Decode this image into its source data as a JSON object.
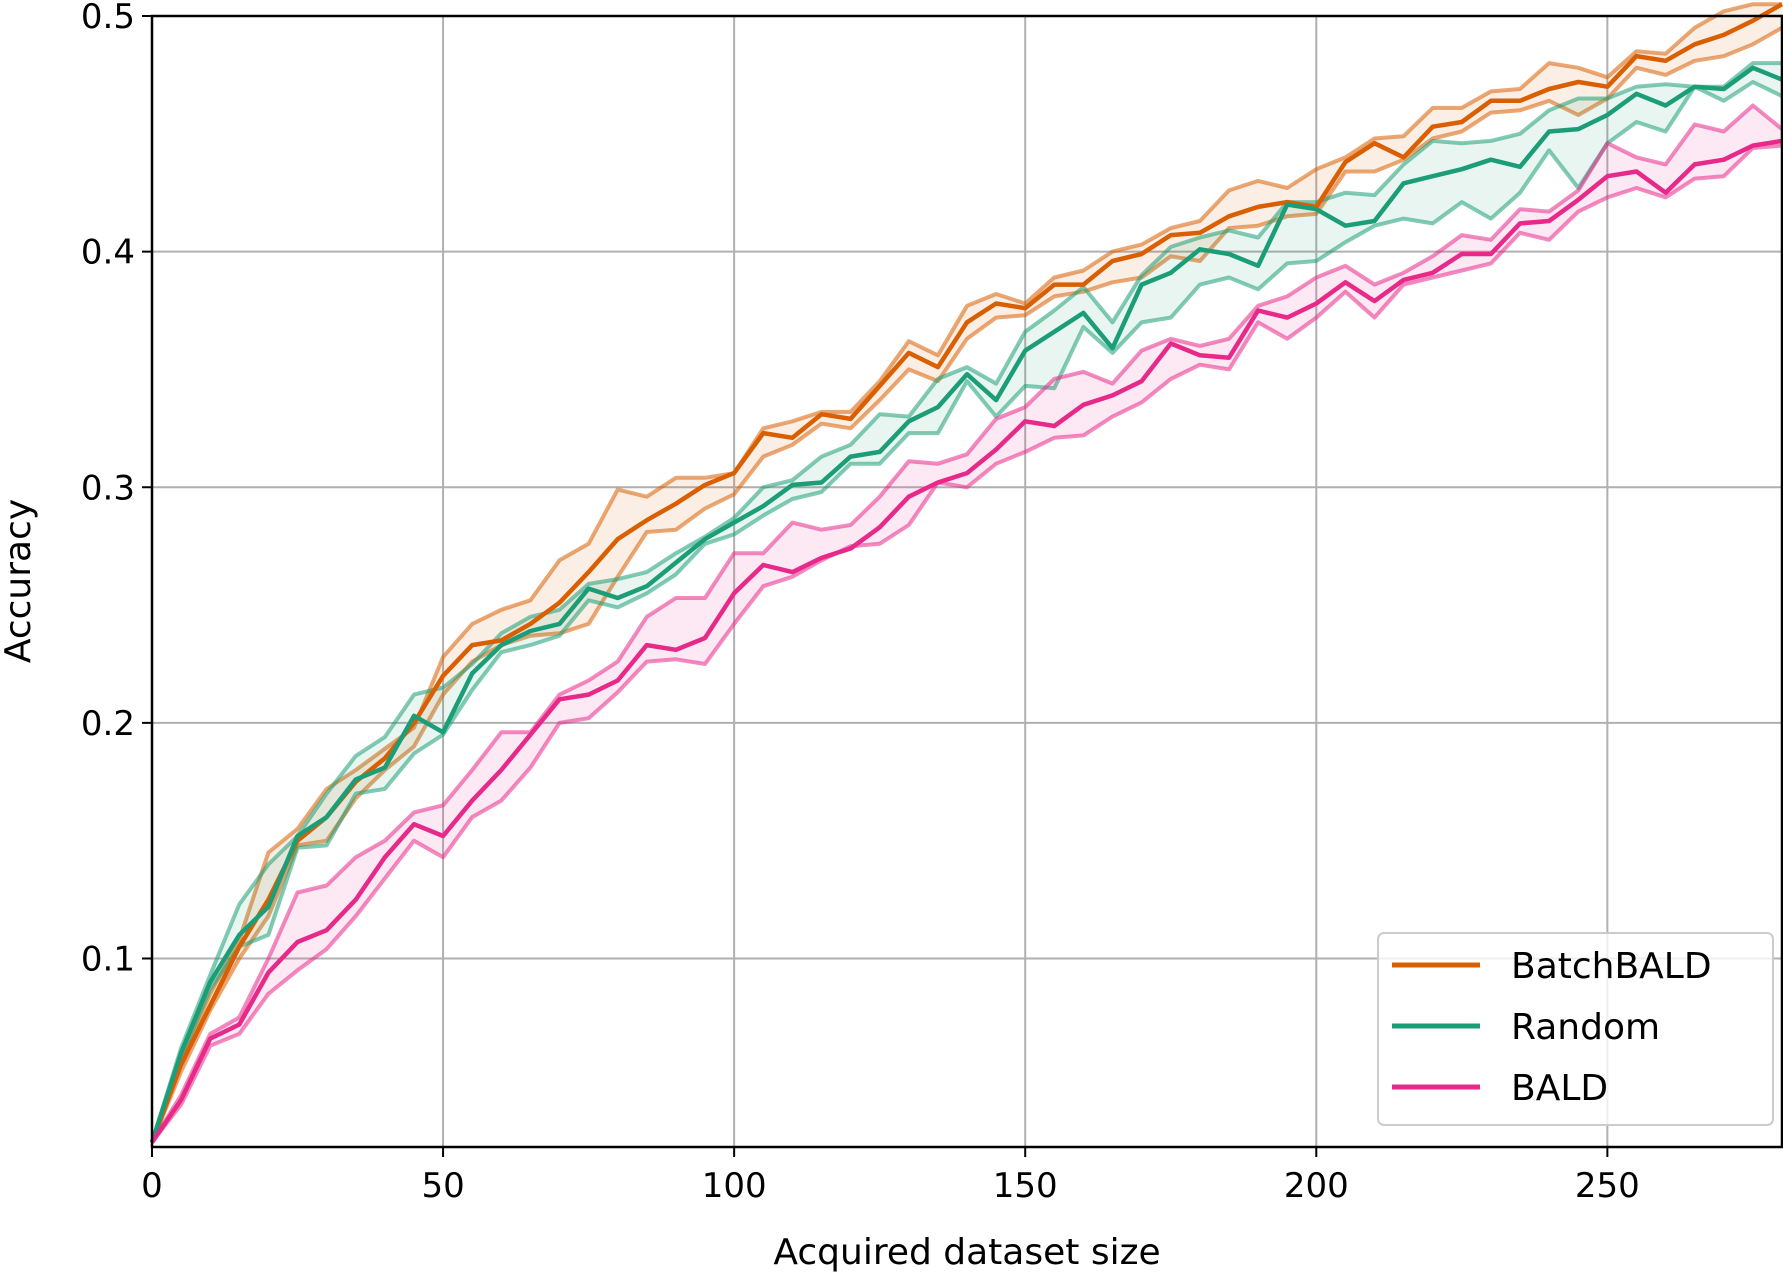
{
  "chart_data": {
    "type": "line",
    "xlabel": "Acquired dataset size",
    "ylabel": "Accuracy",
    "xlim": [
      0,
      280
    ],
    "ylim": [
      0.02,
      0.5
    ],
    "xticks": [
      0,
      50,
      100,
      150,
      200,
      250
    ],
    "xtick_labels": [
      "0",
      "50",
      "100",
      "150",
      "200",
      "250"
    ],
    "yticks": [
      0.1,
      0.2,
      0.3,
      0.4,
      0.5
    ],
    "ytick_labels": [
      "0.1",
      "0.2",
      "0.3",
      "0.4",
      "0.5"
    ],
    "grid": true,
    "legend_position": "bottom-right",
    "x": [
      0,
      5,
      10,
      15,
      20,
      25,
      30,
      35,
      40,
      45,
      50,
      55,
      60,
      65,
      70,
      75,
      80,
      85,
      90,
      95,
      100,
      105,
      110,
      115,
      120,
      125,
      130,
      135,
      140,
      145,
      150,
      155,
      160,
      165,
      170,
      175,
      180,
      185,
      190,
      195,
      200,
      205,
      210,
      215,
      220,
      225,
      230,
      235,
      240,
      245,
      250,
      255,
      260,
      265,
      270,
      275,
      280
    ],
    "series": [
      {
        "name": "BatchBALD",
        "color": "#d95f02",
        "band_upper": [
          0.022,
          0.057,
          0.085,
          0.108,
          0.145,
          0.155,
          0.172,
          0.18,
          0.189,
          0.198,
          0.228,
          0.242,
          0.248,
          0.252,
          0.269,
          0.276,
          0.299,
          0.296,
          0.304,
          0.304,
          0.306,
          0.325,
          0.328,
          0.332,
          0.332,
          0.345,
          0.362,
          0.356,
          0.377,
          0.382,
          0.378,
          0.389,
          0.392,
          0.4,
          0.403,
          0.41,
          0.413,
          0.426,
          0.43,
          0.427,
          0.435,
          0.44,
          0.448,
          0.449,
          0.461,
          0.461,
          0.468,
          0.469,
          0.48,
          0.478,
          0.474,
          0.485,
          0.484,
          0.495,
          0.502,
          0.505,
          0.505
        ],
        "values": [
          0.022,
          0.055,
          0.08,
          0.105,
          0.125,
          0.15,
          0.16,
          0.175,
          0.185,
          0.2,
          0.22,
          0.233,
          0.235,
          0.242,
          0.251,
          0.264,
          0.278,
          0.286,
          0.293,
          0.301,
          0.306,
          0.323,
          0.321,
          0.331,
          0.329,
          0.343,
          0.357,
          0.351,
          0.37,
          0.378,
          0.376,
          0.386,
          0.386,
          0.396,
          0.399,
          0.407,
          0.408,
          0.415,
          0.419,
          0.421,
          0.419,
          0.438,
          0.446,
          0.44,
          0.453,
          0.455,
          0.464,
          0.464,
          0.469,
          0.472,
          0.47,
          0.483,
          0.481,
          0.488,
          0.492,
          0.498,
          0.505
        ],
        "band_lower": [
          0.022,
          0.052,
          0.078,
          0.1,
          0.118,
          0.148,
          0.15,
          0.168,
          0.18,
          0.19,
          0.212,
          0.226,
          0.233,
          0.237,
          0.238,
          0.242,
          0.262,
          0.281,
          0.282,
          0.291,
          0.297,
          0.313,
          0.318,
          0.327,
          0.325,
          0.337,
          0.35,
          0.345,
          0.363,
          0.372,
          0.373,
          0.381,
          0.383,
          0.387,
          0.389,
          0.398,
          0.396,
          0.41,
          0.411,
          0.415,
          0.416,
          0.434,
          0.434,
          0.439,
          0.448,
          0.451,
          0.459,
          0.46,
          0.464,
          0.458,
          0.465,
          0.478,
          0.475,
          0.481,
          0.483,
          0.488,
          0.495
        ]
      },
      {
        "name": "Random",
        "color": "#1b9e77",
        "band_upper": [
          0.022,
          0.062,
          0.093,
          0.123,
          0.14,
          0.152,
          0.17,
          0.186,
          0.194,
          0.212,
          0.215,
          0.225,
          0.238,
          0.245,
          0.248,
          0.259,
          0.261,
          0.264,
          0.272,
          0.279,
          0.287,
          0.3,
          0.303,
          0.313,
          0.318,
          0.331,
          0.33,
          0.346,
          0.351,
          0.344,
          0.366,
          0.375,
          0.385,
          0.37,
          0.39,
          0.402,
          0.406,
          0.409,
          0.406,
          0.421,
          0.421,
          0.425,
          0.424,
          0.437,
          0.447,
          0.446,
          0.447,
          0.45,
          0.46,
          0.465,
          0.465,
          0.47,
          0.471,
          0.47,
          0.47,
          0.48,
          0.48
        ],
        "values": [
          0.022,
          0.06,
          0.09,
          0.11,
          0.122,
          0.152,
          0.16,
          0.176,
          0.181,
          0.203,
          0.196,
          0.221,
          0.233,
          0.239,
          0.242,
          0.257,
          0.253,
          0.258,
          0.268,
          0.278,
          0.285,
          0.292,
          0.301,
          0.302,
          0.313,
          0.315,
          0.328,
          0.334,
          0.348,
          0.337,
          0.358,
          0.366,
          0.374,
          0.359,
          0.386,
          0.391,
          0.401,
          0.399,
          0.394,
          0.42,
          0.418,
          0.411,
          0.413,
          0.429,
          0.432,
          0.435,
          0.439,
          0.436,
          0.451,
          0.452,
          0.458,
          0.467,
          0.462,
          0.47,
          0.469,
          0.478,
          0.473
        ],
        "band_lower": [
          0.022,
          0.058,
          0.087,
          0.105,
          0.11,
          0.147,
          0.148,
          0.17,
          0.172,
          0.187,
          0.195,
          0.214,
          0.23,
          0.233,
          0.237,
          0.252,
          0.249,
          0.255,
          0.263,
          0.276,
          0.28,
          0.288,
          0.295,
          0.298,
          0.31,
          0.31,
          0.323,
          0.323,
          0.345,
          0.33,
          0.343,
          0.342,
          0.368,
          0.357,
          0.37,
          0.372,
          0.386,
          0.389,
          0.384,
          0.395,
          0.396,
          0.404,
          0.411,
          0.414,
          0.412,
          0.421,
          0.414,
          0.425,
          0.443,
          0.427,
          0.446,
          0.455,
          0.451,
          0.47,
          0.464,
          0.472,
          0.466
        ]
      },
      {
        "name": "BALD",
        "color": "#e7298a",
        "band_upper": [
          0.022,
          0.042,
          0.068,
          0.075,
          0.1,
          0.128,
          0.131,
          0.143,
          0.15,
          0.162,
          0.165,
          0.18,
          0.196,
          0.196,
          0.212,
          0.218,
          0.226,
          0.245,
          0.253,
          0.253,
          0.272,
          0.272,
          0.285,
          0.282,
          0.284,
          0.296,
          0.311,
          0.31,
          0.314,
          0.329,
          0.334,
          0.346,
          0.349,
          0.344,
          0.358,
          0.363,
          0.36,
          0.363,
          0.377,
          0.381,
          0.389,
          0.394,
          0.386,
          0.391,
          0.398,
          0.407,
          0.405,
          0.418,
          0.417,
          0.426,
          0.446,
          0.44,
          0.437,
          0.454,
          0.451,
          0.462,
          0.452
        ],
        "values": [
          0.022,
          0.04,
          0.066,
          0.072,
          0.094,
          0.107,
          0.112,
          0.125,
          0.143,
          0.157,
          0.152,
          0.167,
          0.18,
          0.195,
          0.21,
          0.212,
          0.218,
          0.233,
          0.231,
          0.236,
          0.255,
          0.267,
          0.264,
          0.27,
          0.274,
          0.283,
          0.296,
          0.302,
          0.306,
          0.316,
          0.328,
          0.326,
          0.335,
          0.339,
          0.345,
          0.361,
          0.356,
          0.355,
          0.375,
          0.372,
          0.378,
          0.387,
          0.379,
          0.388,
          0.391,
          0.399,
          0.399,
          0.412,
          0.413,
          0.422,
          0.432,
          0.434,
          0.425,
          0.437,
          0.439,
          0.445,
          0.447
        ],
        "band_lower": [
          0.022,
          0.038,
          0.063,
          0.068,
          0.085,
          0.095,
          0.104,
          0.118,
          0.134,
          0.15,
          0.143,
          0.16,
          0.167,
          0.181,
          0.2,
          0.202,
          0.213,
          0.226,
          0.227,
          0.225,
          0.242,
          0.258,
          0.262,
          0.269,
          0.275,
          0.276,
          0.284,
          0.302,
          0.3,
          0.31,
          0.315,
          0.321,
          0.322,
          0.33,
          0.336,
          0.346,
          0.352,
          0.35,
          0.37,
          0.363,
          0.372,
          0.383,
          0.372,
          0.386,
          0.389,
          0.392,
          0.395,
          0.408,
          0.405,
          0.417,
          0.423,
          0.427,
          0.423,
          0.431,
          0.432,
          0.444,
          0.445
        ]
      }
    ]
  }
}
